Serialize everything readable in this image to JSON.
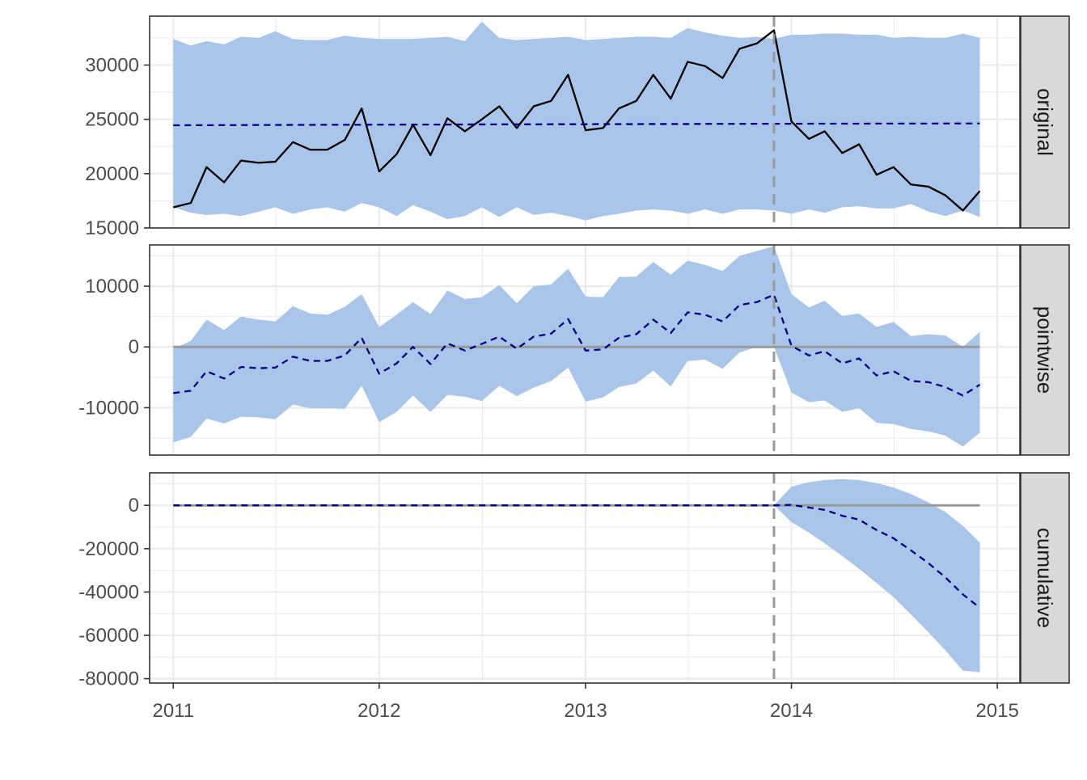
{
  "chart_data": {
    "type": "area",
    "x_axis": {
      "type": "date",
      "range": [
        "2010-11-20",
        "2015-02-10"
      ],
      "ticks": [
        "2011",
        "2012",
        "2013",
        "2014",
        "2015"
      ],
      "tick_dates": [
        "2011-01-01",
        "2012-01-01",
        "2013-01-01",
        "2014-01-01",
        "2015-01-01"
      ]
    },
    "intervention_date": "2013-12-01",
    "dates": [
      "2011-01-01",
      "2011-02-01",
      "2011-03-01",
      "2011-04-01",
      "2011-05-01",
      "2011-06-01",
      "2011-07-01",
      "2011-08-01",
      "2011-09-01",
      "2011-10-01",
      "2011-11-01",
      "2011-12-01",
      "2012-01-01",
      "2012-02-01",
      "2012-03-01",
      "2012-04-01",
      "2012-05-01",
      "2012-06-01",
      "2012-07-01",
      "2012-08-01",
      "2012-09-01",
      "2012-10-01",
      "2012-11-01",
      "2012-12-01",
      "2013-01-01",
      "2013-02-01",
      "2013-03-01",
      "2013-04-01",
      "2013-05-01",
      "2013-06-01",
      "2013-07-01",
      "2013-08-01",
      "2013-09-01",
      "2013-10-01",
      "2013-11-01",
      "2013-12-01",
      "2014-01-01",
      "2014-02-01",
      "2014-03-01",
      "2014-04-01",
      "2014-05-01",
      "2014-06-01",
      "2014-07-01",
      "2014-08-01",
      "2014-09-01",
      "2014-10-01",
      "2014-11-01",
      "2014-12-01"
    ],
    "panels": [
      {
        "strip": "original",
        "ylim": [
          15000,
          34500
        ],
        "yticks": [
          15000,
          20000,
          25000,
          30000
        ],
        "ytick_labels": [
          "15000",
          "20000",
          "25000",
          "30000"
        ],
        "band_upper": [
          32400,
          31800,
          32200,
          31900,
          32600,
          32500,
          33100,
          32400,
          32300,
          32300,
          32700,
          32500,
          32400,
          32400,
          32400,
          32500,
          32600,
          32200,
          34000,
          32500,
          32300,
          32400,
          32500,
          32600,
          32300,
          32400,
          32500,
          32600,
          32600,
          32500,
          33400,
          33000,
          32700,
          32500,
          32600,
          32400,
          32800,
          32800,
          32900,
          32900,
          32800,
          32800,
          32500,
          32600,
          32500,
          32500,
          32900,
          32500
        ],
        "band_lower": [
          16900,
          16400,
          16200,
          16300,
          16100,
          16500,
          16900,
          16300,
          16700,
          16900,
          16500,
          17300,
          16900,
          16100,
          17100,
          16500,
          15800,
          16100,
          16900,
          16000,
          16900,
          16200,
          16400,
          16100,
          15700,
          16100,
          16300,
          16600,
          16700,
          16600,
          16300,
          16700,
          16300,
          16700,
          16700,
          16600,
          16300,
          16700,
          16400,
          16900,
          17000,
          16800,
          16800,
          17200,
          16500,
          16100,
          16600,
          16000
        ],
        "series": [
          {
            "kind": "observed",
            "color": "#000000",
            "dash": "solid",
            "values": [
              16900,
              17300,
              20600,
              19200,
              21200,
              21000,
              21100,
              22900,
              22200,
              22200,
              23100,
              26000,
              20200,
              21800,
              24500,
              21700,
              25100,
              23900,
              25000,
              26200,
              24200,
              26200,
              26700,
              29100,
              24000,
              24200,
              26000,
              26700,
              29100,
              26900,
              30300,
              29900,
              28800,
              31500,
              32000,
              33200,
              24800,
              23200,
              23900,
              21900,
              22700,
              19900,
              20600,
              19000,
              18800,
              18000,
              16600,
              18400
            ]
          },
          {
            "kind": "predicted",
            "color": "#000080",
            "dash": "dashed",
            "values": [
              24450,
              24460,
              24460,
              24470,
              24470,
              24480,
              24480,
              24490,
              24490,
              24500,
              24500,
              24500,
              24510,
              24510,
              24520,
              24520,
              24520,
              24530,
              24530,
              24540,
              24540,
              24540,
              24550,
              24550,
              24550,
              24560,
              24560,
              24560,
              24570,
              24570,
              24570,
              24580,
              24580,
              24580,
              24590,
              24590,
              24590,
              24600,
              24600,
              24600,
              24600,
              24610,
              24610,
              24610,
              24610,
              24620,
              24620,
              24620
            ]
          }
        ]
      },
      {
        "strip": "pointwise",
        "ylim": [
          -17800,
          16800
        ],
        "yticks": [
          -10000,
          0,
          10000
        ],
        "ytick_labels": [
          "-10000",
          "0",
          "10000"
        ],
        "band_upper": [
          -300,
          1000,
          4500,
          2800,
          5000,
          4500,
          4200,
          6700,
          5500,
          5300,
          6600,
          8700,
          3300,
          5300,
          7400,
          5400,
          9300,
          7900,
          8200,
          10200,
          7200,
          10000,
          10300,
          12900,
          8300,
          8200,
          11500,
          11600,
          14000,
          11900,
          14200,
          13500,
          12500,
          15000,
          15800,
          16600,
          8700,
          6500,
          7600,
          5100,
          5500,
          3300,
          4100,
          1800,
          2100,
          1900,
          0,
          2500
        ],
        "band_lower": [
          -15700,
          -14800,
          -11800,
          -12600,
          -11500,
          -11600,
          -11900,
          -9500,
          -10100,
          -10100,
          -10200,
          -6400,
          -12400,
          -10700,
          -8000,
          -10700,
          -7900,
          -8200,
          -8900,
          -6400,
          -8100,
          -6700,
          -5600,
          -3400,
          -9000,
          -8300,
          -6600,
          -6000,
          -3900,
          -6500,
          -2300,
          -2100,
          -3600,
          -900,
          0,
          0,
          -7500,
          -9100,
          -8800,
          -10700,
          -10100,
          -12500,
          -12700,
          -13500,
          -13900,
          -14600,
          -16400,
          -14100
        ],
        "series": [
          {
            "kind": "reference",
            "color": "#999999",
            "dash": "solid",
            "values": [
              0,
              0,
              0,
              0,
              0,
              0,
              0,
              0,
              0,
              0,
              0,
              0,
              0,
              0,
              0,
              0,
              0,
              0,
              0,
              0,
              0,
              0,
              0,
              0,
              0,
              0,
              0,
              0,
              0,
              0,
              0,
              0,
              0,
              0,
              0,
              0,
              0,
              0,
              0,
              0,
              0,
              0,
              0,
              0,
              0,
              0,
              0,
              0
            ]
          },
          {
            "kind": "effect",
            "color": "#000080",
            "dash": "dashed",
            "values": [
              -7600,
              -7200,
              -4000,
              -5200,
              -3300,
              -3500,
              -3400,
              -1600,
              -2300,
              -2300,
              -1400,
              1500,
              -4400,
              -2700,
              0,
              -2800,
              600,
              -600,
              500,
              1700,
              -300,
              1700,
              2200,
              4600,
              -600,
              -400,
              1500,
              2100,
              4500,
              2300,
              5700,
              5300,
              4200,
              6900,
              7400,
              8600,
              200,
              -1400,
              -700,
              -2700,
              -1900,
              -4700,
              -4000,
              -5600,
              -5800,
              -6600,
              -8000,
              -6200
            ]
          }
        ]
      },
      {
        "strip": "cumulative",
        "ylim": [
          -82000,
          15000
        ],
        "yticks": [
          -80000,
          -60000,
          -40000,
          -20000,
          0
        ],
        "ytick_labels": [
          "-80000",
          "-60000",
          "-40000",
          "-20000",
          "0"
        ],
        "band_upper": [
          0,
          0,
          0,
          0,
          0,
          0,
          0,
          0,
          0,
          0,
          0,
          0,
          0,
          0,
          0,
          0,
          0,
          0,
          0,
          0,
          0,
          0,
          0,
          0,
          0,
          0,
          0,
          0,
          0,
          0,
          0,
          0,
          0,
          0,
          0,
          0,
          8600,
          10700,
          11700,
          12100,
          11700,
          10300,
          8200,
          5200,
          1400,
          -3100,
          -9500,
          -17200
        ],
        "band_lower": [
          0,
          0,
          0,
          0,
          0,
          0,
          0,
          0,
          0,
          0,
          0,
          0,
          0,
          0,
          0,
          0,
          0,
          0,
          0,
          0,
          0,
          0,
          0,
          0,
          0,
          0,
          0,
          0,
          0,
          0,
          0,
          0,
          0,
          0,
          0,
          0,
          -7700,
          -12600,
          -17600,
          -23400,
          -29300,
          -35900,
          -42400,
          -50400,
          -58600,
          -67000,
          -76300,
          -77000
        ],
        "series": [
          {
            "kind": "reference",
            "color": "#999999",
            "dash": "solid",
            "values": [
              0,
              0,
              0,
              0,
              0,
              0,
              0,
              0,
              0,
              0,
              0,
              0,
              0,
              0,
              0,
              0,
              0,
              0,
              0,
              0,
              0,
              0,
              0,
              0,
              0,
              0,
              0,
              0,
              0,
              0,
              0,
              0,
              0,
              0,
              0,
              0,
              0,
              0,
              0,
              0,
              0,
              0,
              0,
              0,
              0,
              0,
              0,
              0
            ]
          },
          {
            "kind": "cumulative-effect",
            "color": "#000080",
            "dash": "dashed",
            "values": [
              0,
              0,
              0,
              0,
              0,
              0,
              0,
              0,
              0,
              0,
              0,
              0,
              0,
              0,
              0,
              0,
              0,
              0,
              0,
              0,
              0,
              0,
              0,
              0,
              0,
              0,
              0,
              0,
              0,
              0,
              0,
              0,
              0,
              0,
              0,
              0,
              200,
              -1000,
              -2100,
              -4800,
              -6600,
              -11400,
              -15200,
              -20800,
              -26700,
              -33300,
              -41100,
              -47300
            ]
          }
        ]
      }
    ],
    "grid": true,
    "legend": "none",
    "colors": {
      "band": "#a9c6ea",
      "observed": "#000000",
      "predicted": "#000080",
      "reference": "#999999",
      "intervention_line": "#999999",
      "grid": "#ebebeb",
      "strip_background": "#d9d9d9",
      "panel_border": "#333333"
    }
  }
}
